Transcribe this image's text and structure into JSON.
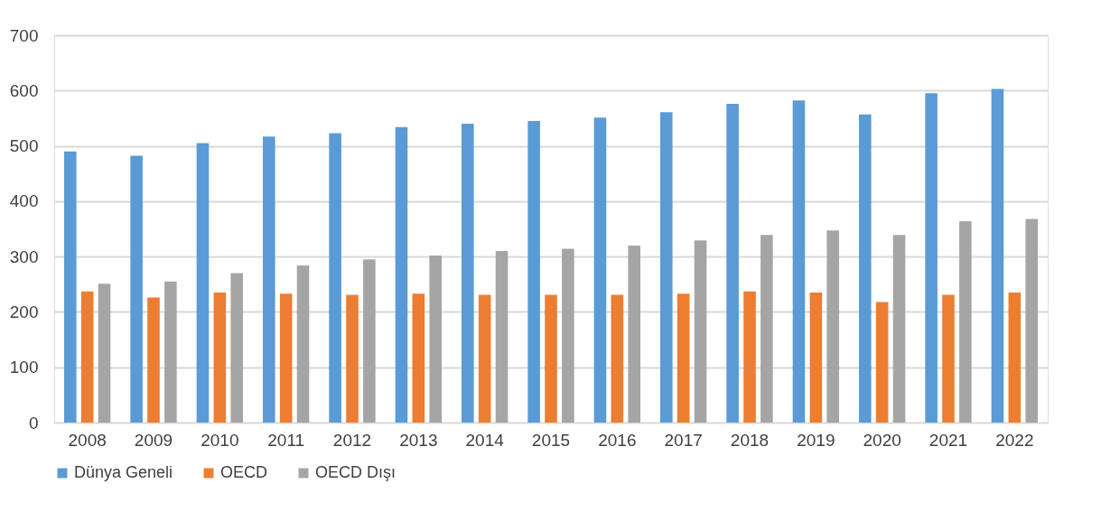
{
  "chart_data": {
    "type": "bar",
    "categories": [
      "2008",
      "2009",
      "2010",
      "2011",
      "2012",
      "2013",
      "2014",
      "2015",
      "2016",
      "2017",
      "2018",
      "2019",
      "2020",
      "2021",
      "2022"
    ],
    "series": [
      {
        "name": "Dünya Geneli",
        "color": "#5b9bd5",
        "values": [
          490,
          482,
          505,
          517,
          523,
          534,
          540,
          545,
          551,
          561,
          576,
          582,
          557,
          595,
          603
        ]
      },
      {
        "name": "OECD",
        "color": "#ed7d31",
        "values": [
          237,
          226,
          235,
          233,
          231,
          233,
          231,
          231,
          231,
          233,
          237,
          235,
          218,
          231,
          235
        ]
      },
      {
        "name": "OECD Dışı",
        "color": "#a5a5a5",
        "values": [
          251,
          255,
          270,
          284,
          295,
          302,
          310,
          314,
          320,
          329,
          339,
          347,
          339,
          364,
          368
        ]
      }
    ],
    "ylim": [
      0,
      700
    ],
    "yticks": [
      0,
      100,
      200,
      300,
      400,
      500,
      600,
      700
    ],
    "grid": "y",
    "legend": "bottom"
  }
}
